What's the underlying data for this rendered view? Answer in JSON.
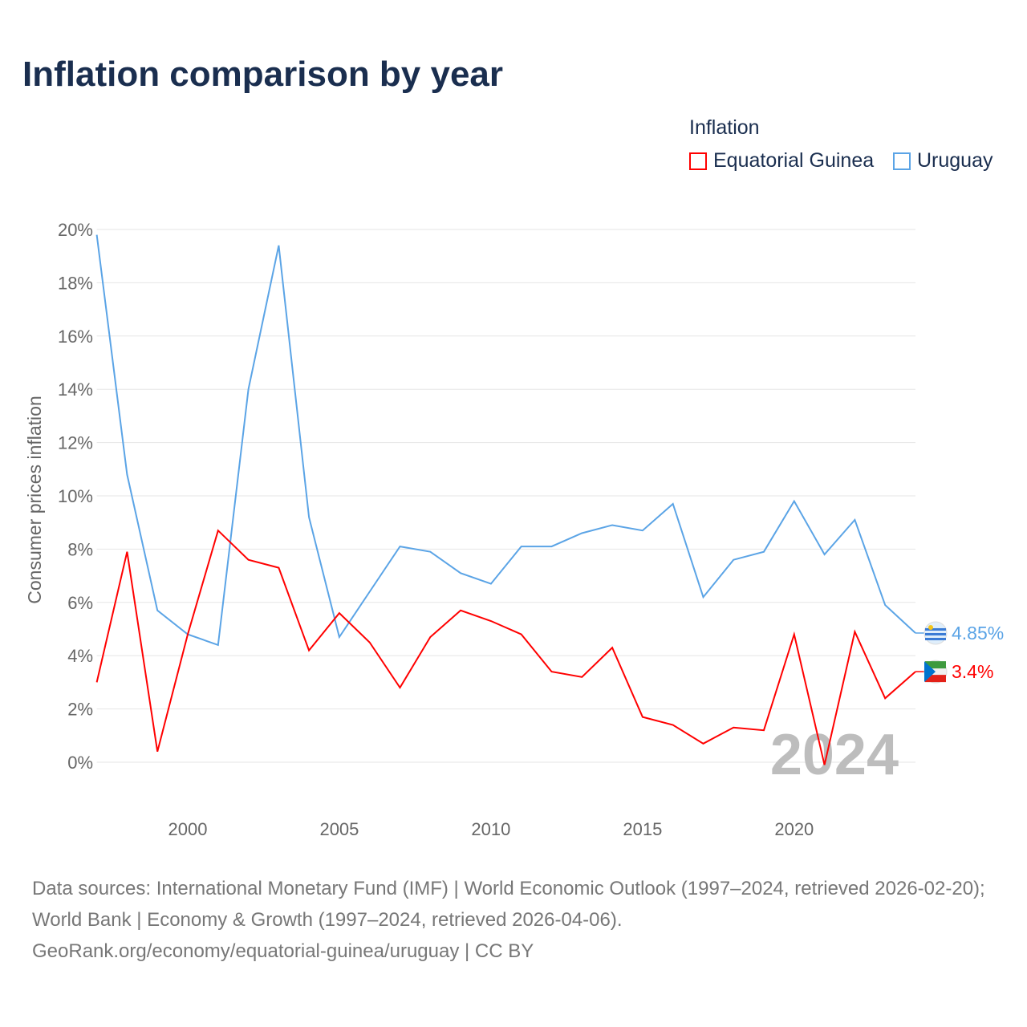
{
  "title": "Inflation comparison by year",
  "legend": {
    "title": "Inflation",
    "items": [
      "Equatorial Guinea",
      "Uruguay"
    ]
  },
  "colors": {
    "Equatorial Guinea": "#ff0000",
    "Uruguay": "#5ba4e6"
  },
  "footer": {
    "line1": "Data sources: International Monetary Fund (IMF) | World Economic Outlook (1997–2024, retrieved 2026-02-20); World Bank | Economy & Growth (1997–2024, retrieved 2026-04-06).",
    "line2": "GeoRank.org/economy/equatorial-guinea/uruguay | CC BY"
  },
  "chart_data": {
    "type": "line",
    "title": "Inflation comparison by year",
    "ylabel": "Consumer prices inflation",
    "xlabel": "",
    "ylim": [
      0,
      20
    ],
    "xlim": [
      1997,
      2024
    ],
    "yticks": [
      0,
      2,
      4,
      6,
      8,
      10,
      12,
      14,
      16,
      18,
      20
    ],
    "ytick_labels": [
      "0%",
      "2%",
      "4%",
      "6%",
      "8%",
      "10%",
      "12%",
      "14%",
      "16%",
      "18%",
      "20%"
    ],
    "xticks": [
      2000,
      2005,
      2010,
      2015,
      2020
    ],
    "xtick_labels": [
      "2000",
      "2005",
      "2010",
      "2015",
      "2020"
    ],
    "year_label": "2024",
    "x": [
      1997,
      1998,
      1999,
      2000,
      2001,
      2002,
      2003,
      2004,
      2005,
      2006,
      2007,
      2008,
      2009,
      2010,
      2011,
      2012,
      2013,
      2014,
      2015,
      2016,
      2017,
      2018,
      2019,
      2020,
      2021,
      2022,
      2023,
      2024
    ],
    "series": [
      {
        "name": "Uruguay",
        "end_label": "4.85%",
        "values": [
          19.8,
          10.8,
          5.7,
          4.8,
          4.4,
          14.0,
          19.4,
          9.2,
          4.7,
          6.4,
          8.1,
          7.9,
          7.1,
          6.7,
          8.1,
          8.1,
          8.6,
          8.9,
          8.7,
          9.7,
          6.2,
          7.6,
          7.9,
          9.8,
          7.8,
          9.1,
          5.9,
          4.85
        ]
      },
      {
        "name": "Equatorial Guinea",
        "end_label": "3.4%",
        "values": [
          3.0,
          7.9,
          0.4,
          4.8,
          8.7,
          7.6,
          7.3,
          4.2,
          5.6,
          4.5,
          2.8,
          4.7,
          5.7,
          5.3,
          4.8,
          3.4,
          3.2,
          4.3,
          1.7,
          1.4,
          0.7,
          1.3,
          1.2,
          4.8,
          -0.1,
          4.9,
          2.4,
          3.4
        ]
      }
    ]
  }
}
